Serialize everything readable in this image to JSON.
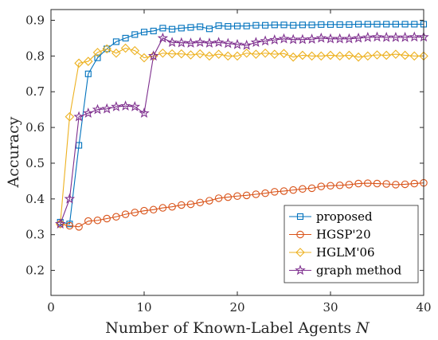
{
  "chart_data": {
    "type": "line",
    "title": "",
    "xlabel": "Number of Known-Label Agents N",
    "xlabel_text": "Number of Known-Label Agents ",
    "xlabel_var": "N",
    "ylabel": "Accuracy",
    "xlim": [
      0,
      40
    ],
    "ylim": [
      0.13,
      0.93
    ],
    "xticks": [
      0,
      10,
      20,
      30,
      40
    ],
    "yticks": [
      0.2,
      0.3,
      0.4,
      0.5,
      0.6,
      0.7,
      0.8,
      0.9
    ],
    "xtick_labels": [
      "0",
      "10",
      "20",
      "30",
      "40"
    ],
    "ytick_labels": [
      "0.2",
      "0.3",
      "0.4",
      "0.5",
      "0.6",
      "0.7",
      "0.8",
      "0.9"
    ],
    "grid": false,
    "legend_position": "bottom-right",
    "x": [
      1,
      2,
      3,
      4,
      5,
      6,
      7,
      8,
      9,
      10,
      11,
      12,
      13,
      14,
      15,
      16,
      17,
      18,
      19,
      20,
      21,
      22,
      23,
      24,
      25,
      26,
      27,
      28,
      29,
      30,
      31,
      32,
      33,
      34,
      35,
      36,
      37,
      38,
      39,
      40
    ],
    "series": [
      {
        "name": "proposed",
        "color": "#0072BD",
        "marker": "square",
        "values": [
          0.335,
          0.33,
          0.55,
          0.75,
          0.795,
          0.82,
          0.84,
          0.85,
          0.86,
          0.867,
          0.87,
          0.878,
          0.875,
          0.878,
          0.88,
          0.882,
          0.876,
          0.885,
          0.883,
          0.884,
          0.884,
          0.886,
          0.886,
          0.887,
          0.887,
          0.886,
          0.887,
          0.887,
          0.888,
          0.888,
          0.888,
          0.888,
          0.889,
          0.889,
          0.889,
          0.889,
          0.889,
          0.889,
          0.889,
          0.889
        ]
      },
      {
        "name": "HGSP'20",
        "color": "#D95319",
        "marker": "circle",
        "values": [
          0.33,
          0.325,
          0.322,
          0.338,
          0.34,
          0.345,
          0.35,
          0.357,
          0.362,
          0.367,
          0.37,
          0.375,
          0.378,
          0.383,
          0.385,
          0.39,
          0.395,
          0.402,
          0.405,
          0.408,
          0.41,
          0.413,
          0.416,
          0.42,
          0.422,
          0.425,
          0.428,
          0.43,
          0.435,
          0.437,
          0.438,
          0.44,
          0.443,
          0.444,
          0.443,
          0.442,
          0.44,
          0.441,
          0.443,
          0.445
        ]
      },
      {
        "name": "HGLM'06",
        "color": "#EDB120",
        "marker": "diamond",
        "values": [
          0.33,
          0.63,
          0.78,
          0.785,
          0.81,
          0.82,
          0.808,
          0.822,
          0.815,
          0.795,
          0.8,
          0.808,
          0.806,
          0.806,
          0.803,
          0.806,
          0.8,
          0.805,
          0.8,
          0.8,
          0.808,
          0.805,
          0.808,
          0.805,
          0.807,
          0.797,
          0.802,
          0.8,
          0.8,
          0.802,
          0.8,
          0.802,
          0.797,
          0.8,
          0.803,
          0.802,
          0.805,
          0.802,
          0.8,
          0.8
        ]
      },
      {
        "name": "graph method",
        "color": "#7E2F8E",
        "marker": "star",
        "values": [
          0.33,
          0.4,
          0.63,
          0.64,
          0.65,
          0.652,
          0.658,
          0.66,
          0.658,
          0.64,
          0.8,
          0.85,
          0.838,
          0.837,
          0.836,
          0.838,
          0.836,
          0.838,
          0.835,
          0.832,
          0.83,
          0.838,
          0.842,
          0.845,
          0.848,
          0.846,
          0.846,
          0.847,
          0.85,
          0.848,
          0.848,
          0.848,
          0.85,
          0.852,
          0.853,
          0.852,
          0.852,
          0.852,
          0.853,
          0.853
        ]
      }
    ]
  }
}
